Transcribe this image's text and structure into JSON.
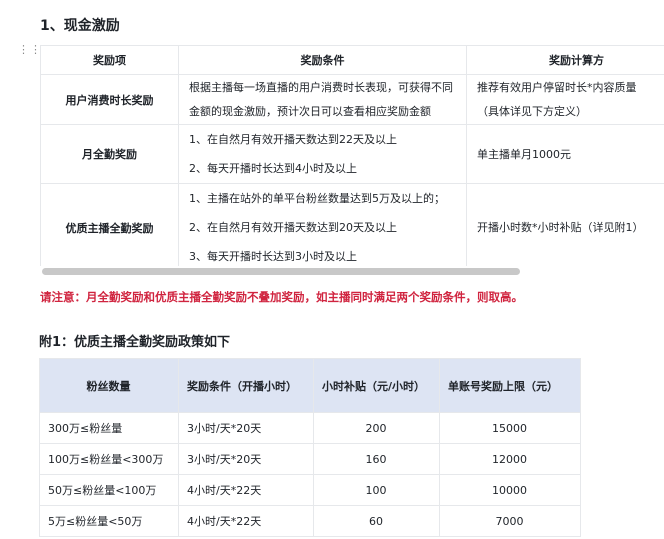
{
  "section_title": "1、现金激励",
  "table1": {
    "headers": [
      "奖励项",
      "奖励条件",
      "奖励计算方"
    ],
    "rows": [
      {
        "name": "用户消费时长奖励",
        "conditions": [
          "根据主播每一场直播的用户消费时长表现，可获得不同",
          "金额的现金激励，预计次日可以查看相应奖励金额"
        ],
        "calc": [
          "推荐有效用户停留时长*内容质量",
          "（具体详见下方定义）"
        ]
      },
      {
        "name": "月全勤奖励",
        "conditions": [
          "1、在自然月有效开播天数达到22天及以上",
          "2、每天开播时长达到4小时及以上"
        ],
        "calc": [
          "单主播单月1000元"
        ]
      },
      {
        "name": "优质主播全勤奖励",
        "conditions": [
          "1、主播在站外的单平台粉丝数量达到5万及以上的；",
          "2、在自然月有效开播天数达到20天及以上",
          "3、每天开播时长达到3小时及以上"
        ],
        "calc": [
          "开播小时数*小时补贴（详见附1）"
        ]
      }
    ]
  },
  "note": "请注意：月全勤奖励和优质主播全勤奖励不叠加奖励，如主播同时满足两个奖励条件，则取高。",
  "appendix_title": "附1：优质主播全勤奖励政策如下",
  "table2": {
    "headers": [
      "粉丝数量",
      "奖励条件（开播小时）",
      "小时补贴（元/小时）",
      "单账号奖励上限（元）"
    ],
    "rows": [
      [
        "300万≤粉丝量",
        "3小时/天*20天",
        "200",
        "15000"
      ],
      [
        "100万≤粉丝量<300万",
        "3小时/天*20天",
        "160",
        "12000"
      ],
      [
        "50万≤粉丝量<100万",
        "4小时/天*22天",
        "100",
        "10000"
      ],
      [
        "5万≤粉丝量<50万",
        "4小时/天*22天",
        "60",
        "7000"
      ]
    ]
  },
  "colors": {
    "note": "#d0243f",
    "table2_header": "#dde4f3"
  }
}
